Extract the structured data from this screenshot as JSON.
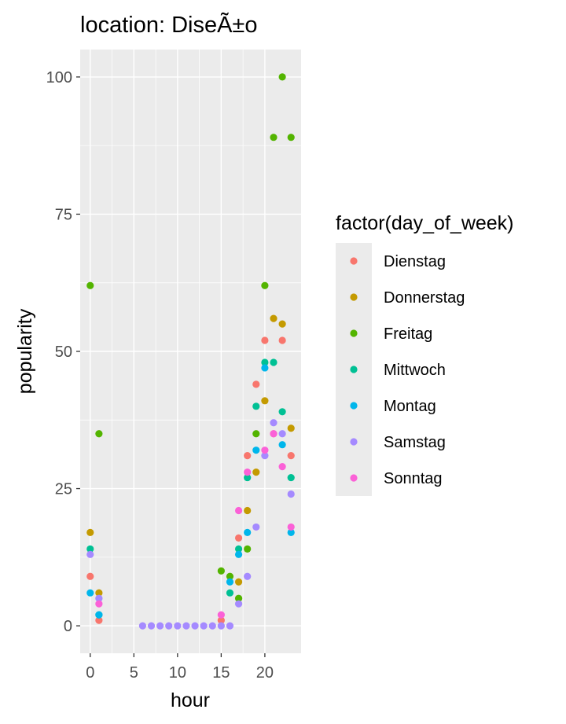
{
  "chart_data": {
    "type": "scatter",
    "title": "location: DiseÃ±o",
    "xlabel": "hour",
    "ylabel": "popularity",
    "xlim": [
      -1.15,
      24.15
    ],
    "ylim": [
      -5,
      105
    ],
    "x_ticks": [
      0,
      5,
      10,
      15,
      20
    ],
    "y_ticks": [
      0,
      25,
      50,
      75,
      100
    ],
    "x_tick_labels": [
      "0",
      "5",
      "10",
      "15",
      "20"
    ],
    "y_tick_labels": [
      "0",
      "25",
      "50",
      "75",
      "100"
    ],
    "grid": true,
    "legend": {
      "title": "factor(day_of_week)",
      "placement": "right"
    },
    "series": [
      {
        "name": "Dienstag",
        "color": "#F8766D",
        "points": [
          [
            0,
            9
          ],
          [
            1,
            1
          ],
          [
            15,
            1
          ],
          [
            17,
            16
          ],
          [
            18,
            31
          ],
          [
            19,
            44
          ],
          [
            20,
            52
          ],
          [
            21,
            35
          ],
          [
            22,
            52
          ],
          [
            23,
            31
          ]
        ]
      },
      {
        "name": "Donnerstag",
        "color": "#C49A00",
        "points": [
          [
            0,
            17
          ],
          [
            1,
            6
          ],
          [
            17,
            8
          ],
          [
            18,
            21
          ],
          [
            19,
            28
          ],
          [
            20,
            41
          ],
          [
            21,
            56
          ],
          [
            22,
            55
          ],
          [
            23,
            36
          ]
        ]
      },
      {
        "name": "Freitag",
        "color": "#53B400",
        "points": [
          [
            0,
            62
          ],
          [
            1,
            35
          ],
          [
            15,
            10
          ],
          [
            16,
            9
          ],
          [
            17,
            5
          ],
          [
            18,
            14
          ],
          [
            19,
            35
          ],
          [
            20,
            62
          ],
          [
            21,
            89
          ],
          [
            22,
            100
          ],
          [
            23,
            89
          ]
        ]
      },
      {
        "name": "Mittwoch",
        "color": "#00C094",
        "points": [
          [
            0,
            14
          ],
          [
            1,
            2
          ],
          [
            16,
            6
          ],
          [
            17,
            14
          ],
          [
            18,
            27
          ],
          [
            19,
            40
          ],
          [
            20,
            48
          ],
          [
            21,
            48
          ],
          [
            22,
            39
          ],
          [
            23,
            27
          ]
        ]
      },
      {
        "name": "Montag",
        "color": "#00B6EB",
        "points": [
          [
            0,
            6
          ],
          [
            1,
            2
          ],
          [
            16,
            8
          ],
          [
            17,
            13
          ],
          [
            18,
            17
          ],
          [
            19,
            32
          ],
          [
            20,
            47
          ],
          [
            22,
            33
          ],
          [
            23,
            17
          ]
        ]
      },
      {
        "name": "Samstag",
        "color": "#A58AFF",
        "points": [
          [
            0,
            13
          ],
          [
            1,
            5
          ],
          [
            6,
            0
          ],
          [
            7,
            0
          ],
          [
            8,
            0
          ],
          [
            9,
            0
          ],
          [
            10,
            0
          ],
          [
            11,
            0
          ],
          [
            12,
            0
          ],
          [
            13,
            0
          ],
          [
            14,
            0
          ],
          [
            15,
            0
          ],
          [
            16,
            0
          ],
          [
            17,
            4
          ],
          [
            18,
            9
          ],
          [
            19,
            18
          ],
          [
            20,
            31
          ],
          [
            21,
            37
          ],
          [
            22,
            35
          ],
          [
            23,
            24
          ]
        ]
      },
      {
        "name": "Sonntag",
        "color": "#FB61D7",
        "points": [
          [
            1,
            4
          ],
          [
            15,
            2
          ],
          [
            17,
            21
          ],
          [
            18,
            28
          ],
          [
            20,
            32
          ],
          [
            21,
            35
          ],
          [
            22,
            29
          ],
          [
            23,
            18
          ]
        ]
      }
    ]
  }
}
